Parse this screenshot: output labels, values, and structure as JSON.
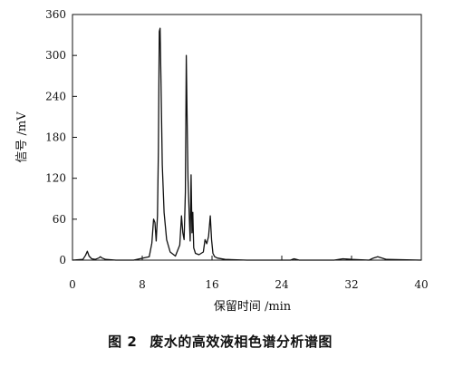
{
  "caption": {
    "figure_number": "图 2",
    "text": "废水的高效液相色谱分析谱图"
  },
  "chart_data": {
    "type": "line",
    "xlabel": "保留时间 /min",
    "ylabel": "信号 /mV",
    "xlim": [
      0,
      40
    ],
    "ylim": [
      0,
      360
    ],
    "xticks": [
      0,
      8,
      16,
      24,
      32,
      40
    ],
    "yticks": [
      0,
      60,
      120,
      180,
      240,
      300,
      360
    ],
    "grid": false,
    "line_color": "#111111",
    "series": [
      {
        "x": [
          0,
          1.2,
          1.5,
          1.7,
          1.9,
          2.2,
          2.6,
          3.0,
          3.2,
          3.4,
          3.8,
          5,
          7,
          8.8,
          9.1,
          9.3,
          9.45,
          9.6,
          9.75,
          9.85,
          9.95,
          10.05,
          10.15,
          10.3,
          10.5,
          10.8,
          11.2,
          11.8,
          12.3,
          12.5,
          12.65,
          12.8,
          12.95,
          13.05,
          13.15,
          13.25,
          13.4,
          13.5,
          13.6,
          13.7,
          13.8,
          13.9,
          14.1,
          14.5,
          15.0,
          15.2,
          15.4,
          15.6,
          15.8,
          15.95,
          16.1,
          16.3,
          16.6,
          17.5,
          20,
          25,
          25.4,
          26,
          30,
          31,
          32,
          34,
          34.5,
          35,
          36,
          40
        ],
        "y": [
          0,
          1,
          7,
          13,
          6,
          2,
          1,
          3,
          5,
          3,
          1,
          0,
          0,
          5,
          25,
          60,
          55,
          28,
          65,
          160,
          335,
          340,
          260,
          140,
          70,
          30,
          12,
          6,
          22,
          65,
          40,
          30,
          100,
          300,
          200,
          120,
          60,
          28,
          125,
          40,
          70,
          18,
          10,
          8,
          12,
          30,
          24,
          35,
          65,
          30,
          10,
          5,
          3,
          1,
          0,
          0,
          2,
          0,
          0,
          2,
          1,
          0,
          3,
          5,
          1,
          0
        ]
      }
    ]
  }
}
